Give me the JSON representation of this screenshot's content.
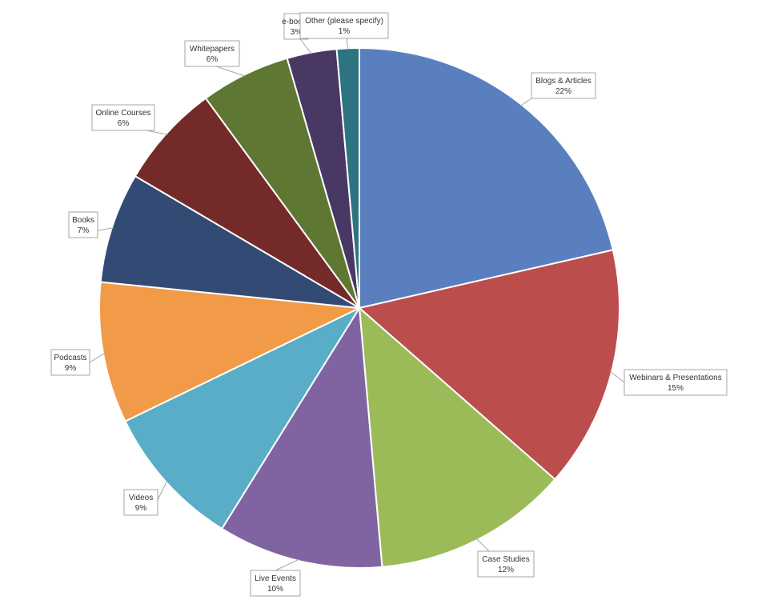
{
  "chart_data": {
    "type": "pie",
    "title": "",
    "legend": "none",
    "categories": [
      "Blogs & Articles",
      "Webinars & Presentations",
      "Case Studies",
      "Live Events",
      "Videos",
      "Podcasts",
      "Books",
      "Online Courses",
      "Whitepapers",
      "e-books",
      "Other (please specify)"
    ],
    "values": [
      21.5,
      15.1,
      12.2,
      10.3,
      9.0,
      8.8,
      6.9,
      6.5,
      5.6,
      3.1,
      1.4
    ],
    "value_labels": [
      "22%",
      "15%",
      "12%",
      "10%",
      "9%",
      "9%",
      "7%",
      "6%",
      "6%",
      "3%",
      "1%"
    ],
    "colors": [
      "#5A7FBE",
      "#BB4E4C",
      "#9BBB59",
      "#8064A2",
      "#5AADC6",
      "#F19A48",
      "#334B74",
      "#752A2A",
      "#5E7834",
      "#4A3864",
      "#2E7480"
    ]
  }
}
